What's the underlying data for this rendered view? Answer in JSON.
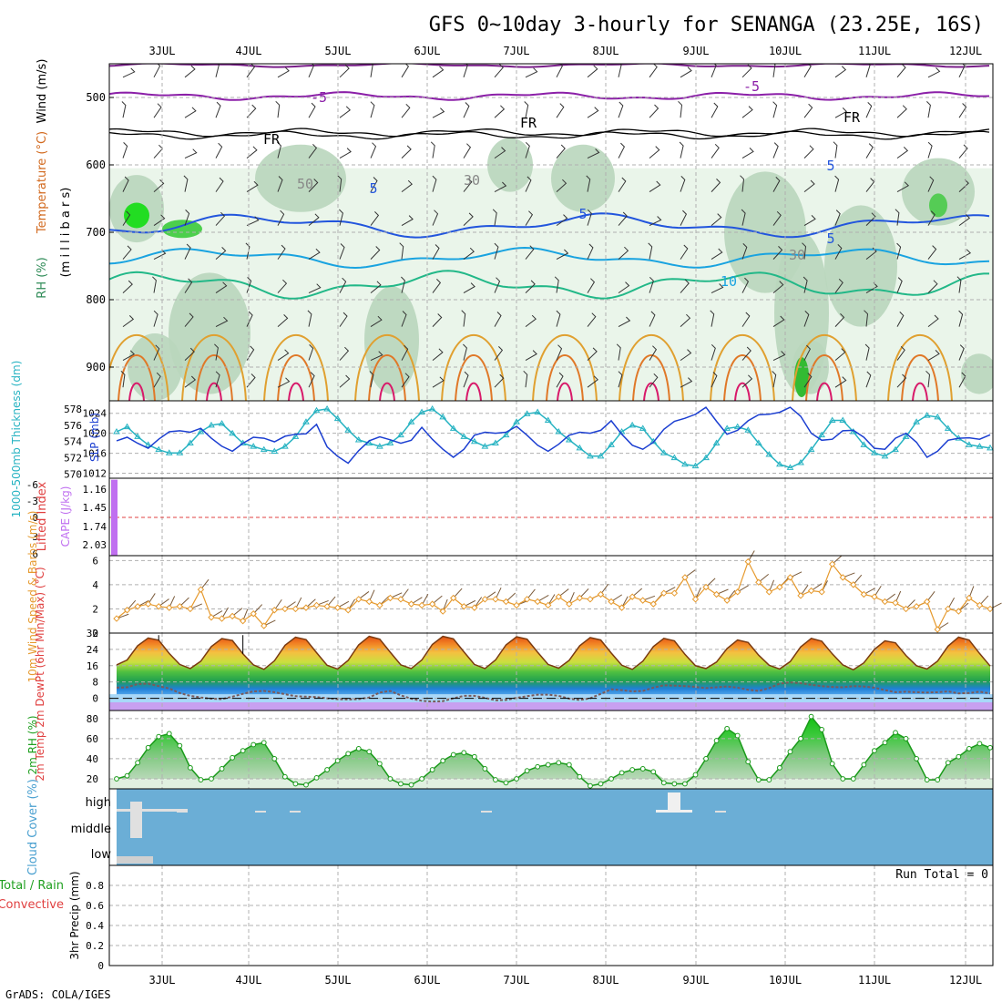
{
  "title": "GFS 0~10day 3-hourly for SENANGA (23.25E, 16S)",
  "credit": "GrADS: COLA/IGES",
  "dates": [
    "3JUL",
    "4JUL",
    "5JUL",
    "6JUL",
    "7JUL",
    "8JUL",
    "9JUL",
    "10JUL",
    "11JUL",
    "12JUL"
  ],
  "chart_data": [
    {
      "id": "upper",
      "type": "contour",
      "ylabel_parts": [
        {
          "text": "RH (%)",
          "color": "#2e8b57"
        },
        {
          "text": "Temperature (°C)",
          "color": "#d2691e"
        },
        {
          "text": "Wind (m/s)",
          "color": "#000000"
        }
      ],
      "ylabel2": "(m i l l i b a r s)",
      "ylim": [
        950,
        450
      ],
      "yticks": [
        500,
        600,
        700,
        800,
        900
      ],
      "contour_labels": [
        "-5",
        "FR",
        "5",
        "10",
        "50",
        "30"
      ]
    },
    {
      "id": "thickness_slp",
      "type": "line",
      "ylabel": "1000-500mb Thickness (dm)",
      "ylabel_right": "SLP (mb)",
      "thick_ticks": [
        570,
        572,
        574,
        576,
        578
      ],
      "slp_ticks": [
        1012,
        1016,
        1020,
        1024
      ],
      "series": [
        {
          "name": "Thickness",
          "color": "#27b3c2",
          "values": [
            575.2,
            575.8,
            574.6,
            573.6,
            573.0,
            572.6,
            572.6,
            573.8,
            575.2,
            576.0,
            576.2,
            575.0,
            573.8,
            573.4,
            573.0,
            572.8,
            573.4,
            574.6,
            576.4,
            577.8,
            578.0,
            576.8,
            575.4,
            574.2,
            573.8,
            573.4,
            573.8,
            574.8,
            576.4,
            577.6,
            578.0,
            577.0,
            575.6,
            574.6,
            574.0,
            573.4,
            573.8,
            574.8,
            576.4,
            577.4,
            577.6,
            576.6,
            575.2,
            574.2,
            573.2,
            572.2,
            572.2,
            573.6,
            575.2,
            576.0,
            575.6,
            574.0,
            572.6,
            572.0,
            571.2,
            571.0,
            572.0,
            573.8,
            575.6,
            575.8,
            575.4,
            573.8,
            572.4,
            571.2,
            570.8,
            571.4,
            573.0,
            574.8,
            576.6,
            576.6,
            575.2,
            573.6,
            572.6,
            572.2,
            573.0,
            574.6,
            576.4,
            577.2,
            577.0,
            575.6,
            574.4,
            573.6,
            573.4,
            573.2
          ]
        },
        {
          "name": "SLP",
          "color": "#1c3fd1",
          "values": [
            1018.5,
            1019.2,
            1018.0,
            1017.0,
            1018.8,
            1020.3,
            1020.5,
            1020.2,
            1021.0,
            1019.0,
            1017.4,
            1016.4,
            1018.0,
            1019.2,
            1019.0,
            1018.3,
            1019.4,
            1019.8,
            1019.9,
            1021.8,
            1017.3,
            1015.4,
            1014.0,
            1016.5,
            1018.5,
            1019.3,
            1018.7,
            1018.0,
            1018.6,
            1021.2,
            1018.8,
            1016.8,
            1015.2,
            1016.8,
            1019.6,
            1020.2,
            1020.0,
            1020.2,
            1021.4,
            1019.6,
            1017.6,
            1016.4,
            1017.8,
            1019.6,
            1020.2,
            1020.0,
            1020.6,
            1022.5,
            1019.8,
            1017.6,
            1016.8,
            1018.2,
            1020.8,
            1022.4,
            1023.0,
            1023.8,
            1025.2,
            1022.4,
            1019.8,
            1020.6,
            1022.5,
            1023.7,
            1023.8,
            1024.2,
            1025.2,
            1023.4,
            1020.0,
            1018.6,
            1018.8,
            1020.5,
            1020.6,
            1019.2,
            1017.0,
            1016.8,
            1019.0,
            1020.0,
            1018.2,
            1015.2,
            1016.4,
            1018.6,
            1019.0,
            1019.1,
            1018.8,
            1019.7
          ]
        }
      ]
    },
    {
      "id": "li_cape",
      "type": "bar",
      "ylabel": "Lifted Index",
      "ylabel_right": "CAPE (J/kg)",
      "li_ticks": [
        "-6",
        "-3",
        "0",
        "3",
        "6"
      ],
      "cape_ticks": [
        "1.16",
        "1.45",
        "1.74",
        "2.03"
      ],
      "cape_values": [
        {
          "time_index": 0,
          "value": 2.03
        }
      ]
    },
    {
      "id": "wind10m",
      "type": "line",
      "ylabel": "10m Wind Speed & Barbs (m/s)",
      "yticks": [
        0,
        2,
        4,
        6
      ],
      "ylim": [
        0,
        6
      ],
      "series": [
        {
          "name": "Speed",
          "color": "#e69a2e",
          "values": [
            1.2,
            1.9,
            2.2,
            2.4,
            2.2,
            2.1,
            2.2,
            2.0,
            3.6,
            1.3,
            1.2,
            1.4,
            1.0,
            1.6,
            0.6,
            1.9,
            2.0,
            2.0,
            2.1,
            2.3,
            2.2,
            2.1,
            1.9,
            2.8,
            2.6,
            2.3,
            2.9,
            2.8,
            2.4,
            2.3,
            2.4,
            1.8,
            2.9,
            2.2,
            2.1,
            2.8,
            2.8,
            2.6,
            2.3,
            2.8,
            2.6,
            2.3,
            3.0,
            2.4,
            2.9,
            2.8,
            3.2,
            2.6,
            2.1,
            3.0,
            2.7,
            2.4,
            3.3,
            3.3,
            4.6,
            2.8,
            3.8,
            3.2,
            2.7,
            3.4,
            5.9,
            4.2,
            3.4,
            3.8,
            4.6,
            3.1,
            3.5,
            3.4,
            5.7,
            4.6,
            4.0,
            3.2,
            3.0,
            2.6,
            2.5,
            2.0,
            2.2,
            2.6,
            0.3,
            2.0,
            1.8,
            2.9,
            2.3,
            2.0
          ]
        }
      ]
    },
    {
      "id": "temp2m",
      "type": "area",
      "ylabel": "2m Temp 2m DewPt (6hr Min/Max) (°C)",
      "yticks": [
        0,
        8,
        16,
        24,
        32
      ],
      "ylim": [
        -6,
        32
      ],
      "series": [
        {
          "name": "Temp",
          "color": "#7a3a10",
          "values": [
            16.4,
            18.8,
            25.8,
            29.6,
            28.5,
            22.0,
            16.6,
            14.6,
            18.2,
            25.4,
            29.3,
            28.4,
            21.8,
            16.4,
            14.2,
            18.4,
            26.0,
            30.0,
            28.8,
            22.4,
            16.2,
            14.4,
            18.6,
            26.2,
            30.4,
            29.0,
            22.6,
            16.4,
            14.6,
            18.8,
            26.4,
            30.4,
            29.2,
            22.8,
            16.6,
            14.6,
            18.8,
            26.2,
            30.2,
            29.0,
            22.6,
            16.6,
            14.8,
            18.6,
            25.8,
            29.8,
            28.6,
            22.2,
            16.2,
            14.2,
            18.2,
            25.4,
            29.4,
            28.2,
            21.6,
            16.0,
            14.6,
            17.8,
            24.4,
            28.6,
            27.4,
            21.2,
            16.2,
            14.4,
            18.0,
            25.2,
            29.4,
            28.0,
            21.8,
            16.4,
            14.0,
            17.4,
            24.0,
            28.2,
            27.2,
            21.0,
            16.0,
            14.4,
            18.2,
            25.6,
            30.0,
            28.6,
            22.0,
            15.8
          ]
        },
        {
          "name": "DewPt",
          "color": "#7a5a5a",
          "values": [
            5.2,
            5.4,
            7.0,
            7.2,
            6.0,
            4.8,
            2.6,
            1.2,
            0.4,
            -0.2,
            -0.4,
            0.8,
            2.2,
            3.4,
            3.6,
            3.0,
            2.0,
            1.0,
            0.8,
            0.6,
            0.0,
            -0.4,
            -0.6,
            -0.4,
            0.4,
            2.8,
            3.6,
            1.4,
            -0.2,
            -1.2,
            -1.6,
            -1.4,
            0.0,
            1.2,
            1.2,
            0.2,
            -1.0,
            -0.8,
            0.2,
            1.0,
            1.8,
            1.8,
            1.2,
            -0.2,
            -0.8,
            0.0,
            2.2,
            4.4,
            4.0,
            3.4,
            3.6,
            5.2,
            6.4,
            6.2,
            6.0,
            5.6,
            5.0,
            5.4,
            5.8,
            5.2,
            4.2,
            3.6,
            5.0,
            7.2,
            7.8,
            7.4,
            6.6,
            6.0,
            5.6,
            5.4,
            6.0,
            5.8,
            5.2,
            4.0,
            3.0,
            3.2,
            3.0,
            2.8,
            3.0,
            3.4,
            2.4,
            2.6,
            3.2,
            2.4
          ]
        }
      ],
      "min_max_bars": [
        {
          "time_index": 4,
          "max": 31
        },
        {
          "time_index": 12,
          "max": 31
        }
      ]
    },
    {
      "id": "rh2m",
      "type": "area",
      "ylabel": "2m RH (%)",
      "yticks": [
        20,
        40,
        60,
        80
      ],
      "ylim": [
        10,
        88
      ],
      "series": [
        {
          "name": "RH",
          "color": "#1a9a1a",
          "values": [
            20,
            23,
            36,
            51,
            62,
            65,
            53,
            31,
            19,
            20,
            30,
            41,
            48,
            54,
            56,
            40,
            22,
            15,
            14,
            21,
            29,
            38,
            45,
            50,
            47,
            35,
            20,
            15,
            14,
            20,
            29,
            38,
            44,
            46,
            42,
            30,
            19,
            16,
            20,
            28,
            32,
            34,
            36,
            34,
            22,
            13,
            15,
            20,
            26,
            29,
            30,
            27,
            16,
            15,
            15,
            24,
            40,
            58,
            70,
            63,
            37,
            19,
            19,
            31,
            47,
            60,
            82,
            69,
            35,
            20,
            20,
            34,
            48,
            56,
            66,
            60,
            40,
            19,
            19,
            36,
            42,
            50,
            55,
            51
          ]
        }
      ]
    },
    {
      "id": "cloud",
      "type": "bar",
      "ylabel": "Cloud Cover (%)",
      "levels": [
        "high",
        "middle",
        "low"
      ]
    },
    {
      "id": "precip",
      "type": "bar",
      "ylabel": "3hr Precip (mm)",
      "ylabel_left": "Total / Rain",
      "ylabel_left2": "Convective",
      "yticks": [
        "0",
        "0.2",
        "0.4",
        "0.6",
        "0.8"
      ],
      "ylim": [
        0,
        1.0
      ],
      "run_total": "Run Total = 0",
      "values": []
    }
  ]
}
